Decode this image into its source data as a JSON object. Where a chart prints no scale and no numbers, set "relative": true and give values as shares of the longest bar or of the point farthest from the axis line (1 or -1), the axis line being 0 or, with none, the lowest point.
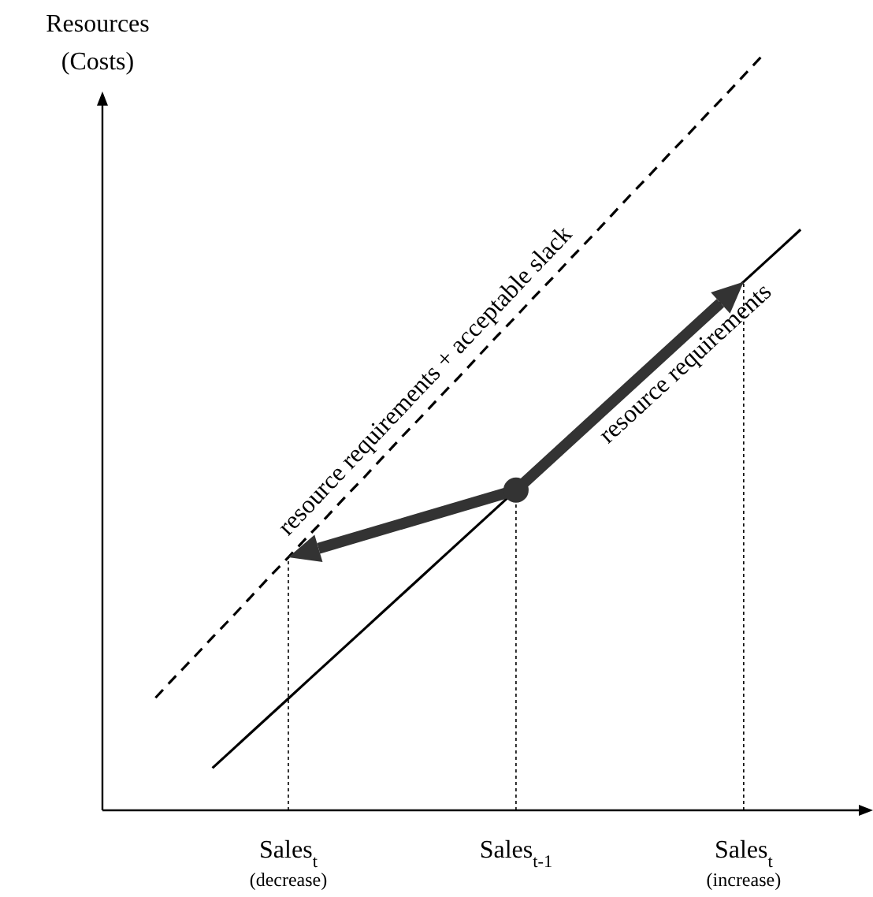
{
  "chart_data": {
    "type": "line",
    "relative": true,
    "ylabel": "Resources\n(Costs)",
    "legend": false,
    "categories": [
      null,
      null,
      null,
      null,
      null,
      null,
      null,
      "Sales$_{t}$\n(decrease)",
      null,
      null,
      null,
      null,
      null,
      null,
      null,
      null,
      null,
      null,
      null,
      "Sales$_{t-1}$",
      null,
      null,
      null,
      null,
      null,
      null,
      null,
      null,
      null,
      null,
      null,
      "Sales$_{t}$\n(increase)",
      null,
      null,
      null
    ],
    "series": [
      {
        "type": "line",
        "name": "resource requirements",
        "color": "#000000",
        "line_style": "solid",
        "values": [
          null,
          null,
          null,
          0.056,
          0.079,
          0.102,
          0.125,
          0.148,
          0.171,
          0.194,
          0.217,
          0.24,
          0.263,
          0.286,
          0.309,
          0.332,
          0.355,
          0.378,
          0.401,
          0.424,
          0.447,
          0.47,
          0.493,
          0.516,
          0.539,
          0.562,
          0.585,
          0.608,
          0.631,
          0.654,
          0.677,
          0.7,
          0.723,
          0.746,
          0.769
        ]
      },
      {
        "type": "line",
        "name": "resource requirements + acceptable slack",
        "color": "#000000",
        "line_style": "dashed",
        "values": [
          0.149,
          0.176,
          0.202,
          0.229,
          0.255,
          0.282,
          0.309,
          0.335,
          0.362,
          0.388,
          0.415,
          0.441,
          0.468,
          0.495,
          0.521,
          0.548,
          0.574,
          0.601,
          0.628,
          0.654,
          0.681,
          0.707,
          0.734,
          0.76,
          0.787,
          0.814,
          0.84,
          0.867,
          0.893,
          0.92,
          0.946,
          0.973,
          1,
          null,
          null
        ]
      },
      {
        "type": "scatter",
        "color": "#333333",
        "marker": "circle",
        "values": [
          null,
          null,
          null,
          null,
          null,
          null,
          null,
          null,
          null,
          null,
          null,
          null,
          null,
          null,
          null,
          null,
          null,
          null,
          null,
          0.424,
          null,
          null,
          null,
          null,
          null,
          null,
          null,
          null,
          null,
          null,
          null,
          null,
          null,
          null,
          null
        ]
      }
    ]
  }
}
